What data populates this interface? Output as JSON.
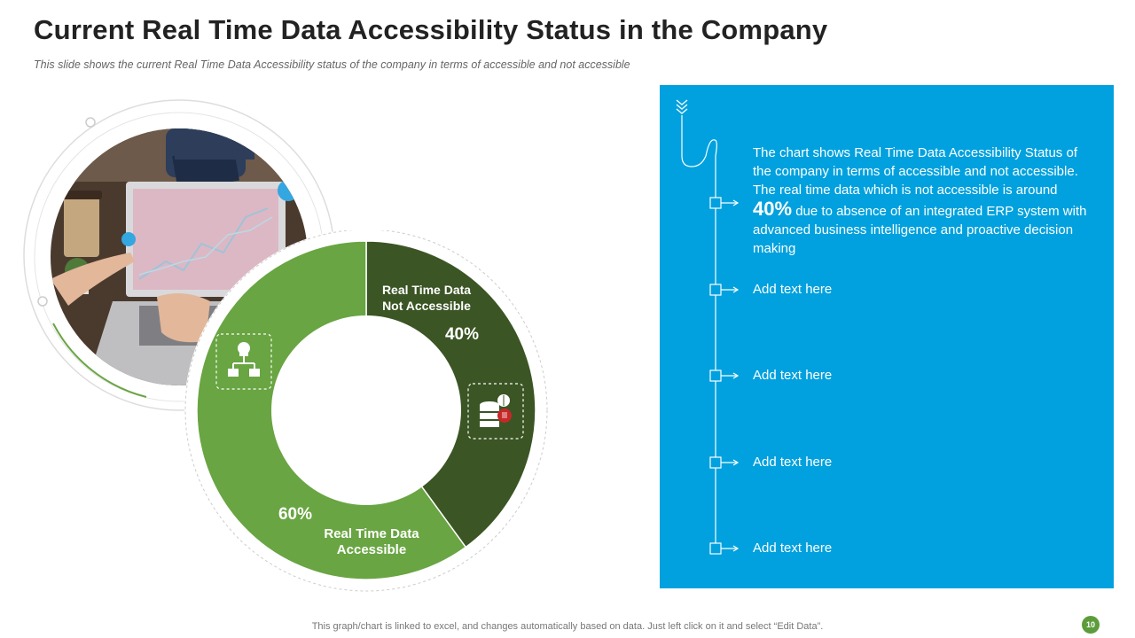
{
  "title": "Current Real Time Data Accessibility Status in the Company",
  "subtitle": "This slide shows the current Real Time Data Accessibility status of the company in terms of accessible and not accessible",
  "colors": {
    "accessible": "#69a542",
    "not_accessible": "#3b5524",
    "panel": "#00a1de",
    "badge": "#5d9c3a"
  },
  "chart_data": {
    "type": "pie",
    "title": "",
    "categories": [
      "Real Time Data Not Accessible",
      "Real Time Data Accessible"
    ],
    "values": [
      40,
      60
    ],
    "labels": {
      "not_accessible": {
        "line1": "Real Time Data",
        "line2": "Not Accessible",
        "pct": "40%"
      },
      "accessible": {
        "line1": "Real Time Data",
        "line2": "Accessible",
        "pct": "60%"
      }
    }
  },
  "panel": {
    "description_before": "The chart shows Real Time Data Accessibility Status of the company in terms of accessible and not accessible. The real time data which is not accessible is around ",
    "highlight": "40%",
    "description_after": " due to absence of an integrated ERP system with advanced business intelligence and proactive decision making",
    "items": [
      "Add text here",
      "Add text here",
      "Add text here",
      "Add text here"
    ]
  },
  "footnote": "This graph/chart is linked to excel,  and changes automatically based on data. Just left click on it and select “Edit Data”.",
  "page_number": "10"
}
